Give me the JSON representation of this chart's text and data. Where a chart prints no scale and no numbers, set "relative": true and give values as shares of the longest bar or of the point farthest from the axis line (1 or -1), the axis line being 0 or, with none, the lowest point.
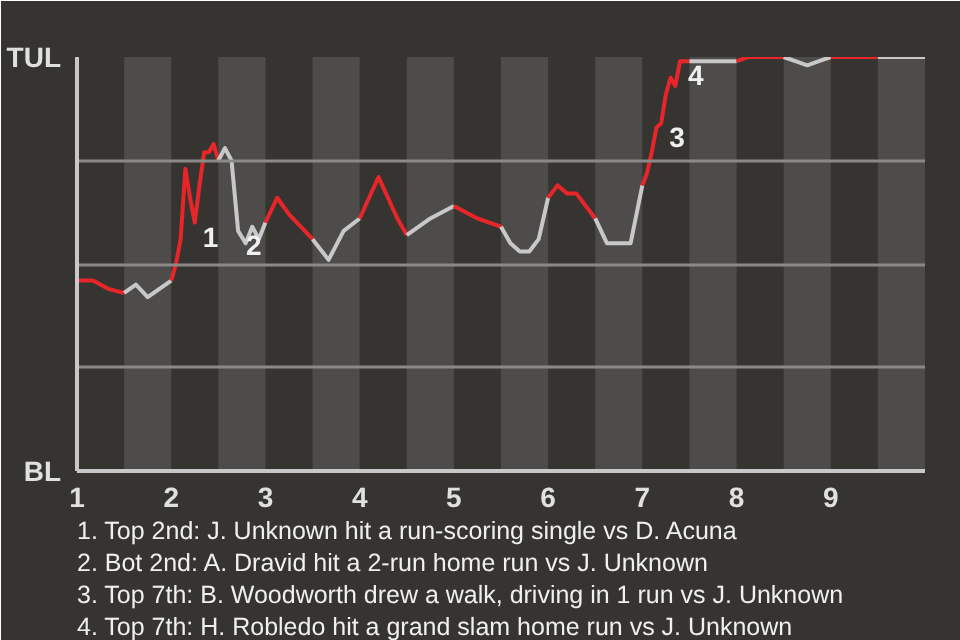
{
  "chart_data": {
    "type": "line",
    "relative": true,
    "xlim": [
      1,
      10
    ],
    "xticks": [
      1,
      2,
      3,
      4,
      5,
      6,
      7,
      8,
      9
    ],
    "grid": "y",
    "marker": "none",
    "line_style": "solid",
    "series": [
      {
        "color": "#e8262a",
        "x": [
          1,
          1.17,
          1.33,
          1.5
        ],
        "values": [
          0.46,
          0.46,
          0.44,
          0.43
        ]
      },
      {
        "color": "#c8c8c8",
        "x": [
          1.5,
          1.625,
          1.75,
          1.875,
          2
        ],
        "values": [
          0.43,
          0.45,
          0.42,
          0.44,
          0.46
        ]
      },
      {
        "color": "#e8262a",
        "x": [
          2,
          2.05,
          2.1,
          2.15,
          2.2,
          2.25,
          2.3,
          2.35,
          2.4,
          2.45,
          2.5
        ],
        "values": [
          0.46,
          0.5,
          0.56,
          0.73,
          0.66,
          0.6,
          0.69,
          0.77,
          0.77,
          0.79,
          0.75
        ]
      },
      {
        "color": "#c8c8c8",
        "x": [
          2.5,
          2.57,
          2.64,
          2.71,
          2.79,
          2.86,
          2.93,
          3
        ],
        "values": [
          0.75,
          0.78,
          0.75,
          0.58,
          0.55,
          0.59,
          0.56,
          0.6
        ]
      },
      {
        "color": "#e8262a",
        "x": [
          3,
          3.125,
          3.25,
          3.375,
          3.5
        ],
        "values": [
          0.6,
          0.66,
          0.62,
          0.59,
          0.56
        ]
      },
      {
        "color": "#c8c8c8",
        "x": [
          3.5,
          3.67,
          3.83,
          4
        ],
        "values": [
          0.56,
          0.51,
          0.58,
          0.61
        ]
      },
      {
        "color": "#e8262a",
        "x": [
          4,
          4.1,
          4.2,
          4.3,
          4.4,
          4.5
        ],
        "values": [
          0.61,
          0.66,
          0.71,
          0.66,
          0.61,
          0.57
        ]
      },
      {
        "color": "#c8c8c8",
        "x": [
          4.5,
          4.75,
          5
        ],
        "values": [
          0.57,
          0.61,
          0.64
        ]
      },
      {
        "color": "#e8262a",
        "x": [
          5,
          5.25,
          5.5
        ],
        "values": [
          0.64,
          0.61,
          0.59
        ]
      },
      {
        "color": "#c8c8c8",
        "x": [
          5.5,
          5.6,
          5.7,
          5.8,
          5.9,
          6
        ],
        "values": [
          0.59,
          0.55,
          0.53,
          0.53,
          0.56,
          0.66
        ]
      },
      {
        "color": "#e8262a",
        "x": [
          6,
          6.1,
          6.2,
          6.3,
          6.4,
          6.5
        ],
        "values": [
          0.66,
          0.69,
          0.67,
          0.67,
          0.64,
          0.61
        ]
      },
      {
        "color": "#c8c8c8",
        "x": [
          6.5,
          6.625,
          6.75,
          6.875,
          7
        ],
        "values": [
          0.61,
          0.55,
          0.55,
          0.55,
          0.69
        ]
      },
      {
        "color": "#e8262a",
        "x": [
          7,
          7.05,
          7.1,
          7.15,
          7.2,
          7.25,
          7.3,
          7.35,
          7.4,
          7.45,
          7.5
        ],
        "values": [
          0.69,
          0.72,
          0.77,
          0.83,
          0.84,
          0.91,
          0.95,
          0.93,
          0.99,
          0.99,
          0.99
        ]
      },
      {
        "color": "#c8c8c8",
        "x": [
          7.5,
          7.625,
          7.75,
          7.875,
          8
        ],
        "values": [
          0.99,
          0.99,
          0.99,
          0.99,
          0.99
        ]
      },
      {
        "color": "#e8262a",
        "x": [
          8,
          8.125,
          8.25,
          8.375,
          8.5
        ],
        "values": [
          0.99,
          1,
          1,
          1,
          1
        ]
      },
      {
        "color": "#c8c8c8",
        "x": [
          8.5,
          8.625,
          8.75,
          8.875,
          9
        ],
        "values": [
          1,
          0.99,
          0.98,
          0.99,
          1
        ]
      },
      {
        "color": "#e8262a",
        "x": [
          9,
          9.125,
          9.25,
          9.375,
          9.5
        ],
        "values": [
          1,
          1,
          1,
          1,
          1
        ]
      },
      {
        "color": "#c8c8c8",
        "x": [
          9.5,
          9.75,
          10
        ],
        "values": [
          1,
          1,
          1
        ]
      }
    ],
    "bands": [
      {
        "axis": "x",
        "from": 1.5,
        "to": 2,
        "color": "#4d4c4a"
      },
      {
        "axis": "x",
        "from": 2.5,
        "to": 3,
        "color": "#4d4c4a"
      },
      {
        "axis": "x",
        "from": 3.5,
        "to": 4,
        "color": "#4d4c4a"
      },
      {
        "axis": "x",
        "from": 4.5,
        "to": 5,
        "color": "#4d4c4a"
      },
      {
        "axis": "x",
        "from": 5.5,
        "to": 6,
        "color": "#4d4c4a"
      },
      {
        "axis": "x",
        "from": 6.5,
        "to": 7,
        "color": "#4d4c4a"
      },
      {
        "axis": "x",
        "from": 7.5,
        "to": 8,
        "color": "#4d4c4a"
      },
      {
        "axis": "x",
        "from": 8.5,
        "to": 9,
        "color": "#4d4c4a"
      },
      {
        "axis": "x",
        "from": 9.5,
        "to": 10,
        "color": "#4d4c4a"
      }
    ],
    "annotations": [
      "TUL",
      "BL",
      {
        "text": "1",
        "x": 2.25,
        "y": 0.6
      },
      {
        "text": "2",
        "x": 2.71,
        "y": 0.58
      },
      {
        "text": "3",
        "x": 7.2,
        "y": 0.84
      },
      {
        "text": "4",
        "x": 7.4,
        "y": 0.99
      },
      "1. Top 2nd: J. Unknown hit a run-scoring single vs D. Acuna",
      "2. Bot 2nd: A. Dravid hit a 2-run home run vs J. Unknown",
      "3. Top 7th: B. Woodworth drew a walk, driving in 1 run vs J. Unknown",
      "4. Top 7th: H. Robledo hit a grand slam home run vs J. Unknown"
    ]
  }
}
